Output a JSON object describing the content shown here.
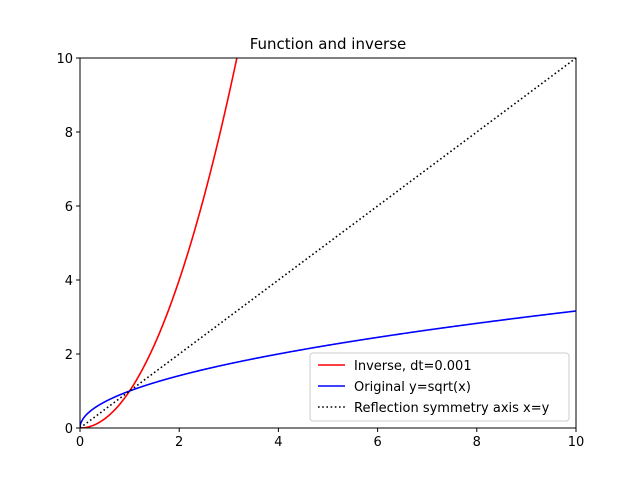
{
  "chart_data": {
    "type": "line",
    "title": "Function and inverse",
    "xlabel": "",
    "ylabel": "",
    "xlim": [
      0,
      10
    ],
    "ylim": [
      0,
      10
    ],
    "xticks": [
      0,
      2,
      4,
      6,
      8,
      10
    ],
    "yticks": [
      0,
      2,
      4,
      6,
      8,
      10
    ],
    "grid": false,
    "legend_position": "lower-right",
    "series": [
      {
        "name": "Inverse, dt=0.001",
        "color": "#ff0000",
        "style": "solid",
        "x": [
          0,
          0.25,
          0.5,
          0.75,
          1.0,
          1.25,
          1.5,
          1.75,
          2.0,
          2.25,
          2.5,
          2.75,
          3.0,
          3.1623
        ],
        "y": [
          0,
          0.0625,
          0.25,
          0.5625,
          1.0,
          1.5625,
          2.25,
          3.0625,
          4.0,
          5.0625,
          6.25,
          7.5625,
          9.0,
          10.0
        ]
      },
      {
        "name": "Original y=sqrt(x)",
        "color": "#0000ff",
        "style": "solid",
        "x": [
          0.01,
          0.05,
          0.1,
          0.2,
          0.3,
          0.5,
          0.75,
          1.0,
          1.5,
          2.0,
          3.0,
          4.0,
          5.0,
          6.0,
          7.0,
          8.0,
          9.0,
          10.0
        ],
        "y": [
          0.1,
          0.2236,
          0.3162,
          0.4472,
          0.5477,
          0.7071,
          0.866,
          1.0,
          1.2247,
          1.4142,
          1.7321,
          2.0,
          2.2361,
          2.4495,
          2.6458,
          2.8284,
          3.0,
          3.1623
        ]
      },
      {
        "name": "Reflection symmetry axis x=y",
        "color": "#000000",
        "style": "dotted",
        "x": [
          0,
          10
        ],
        "y": [
          0,
          10
        ]
      }
    ]
  }
}
